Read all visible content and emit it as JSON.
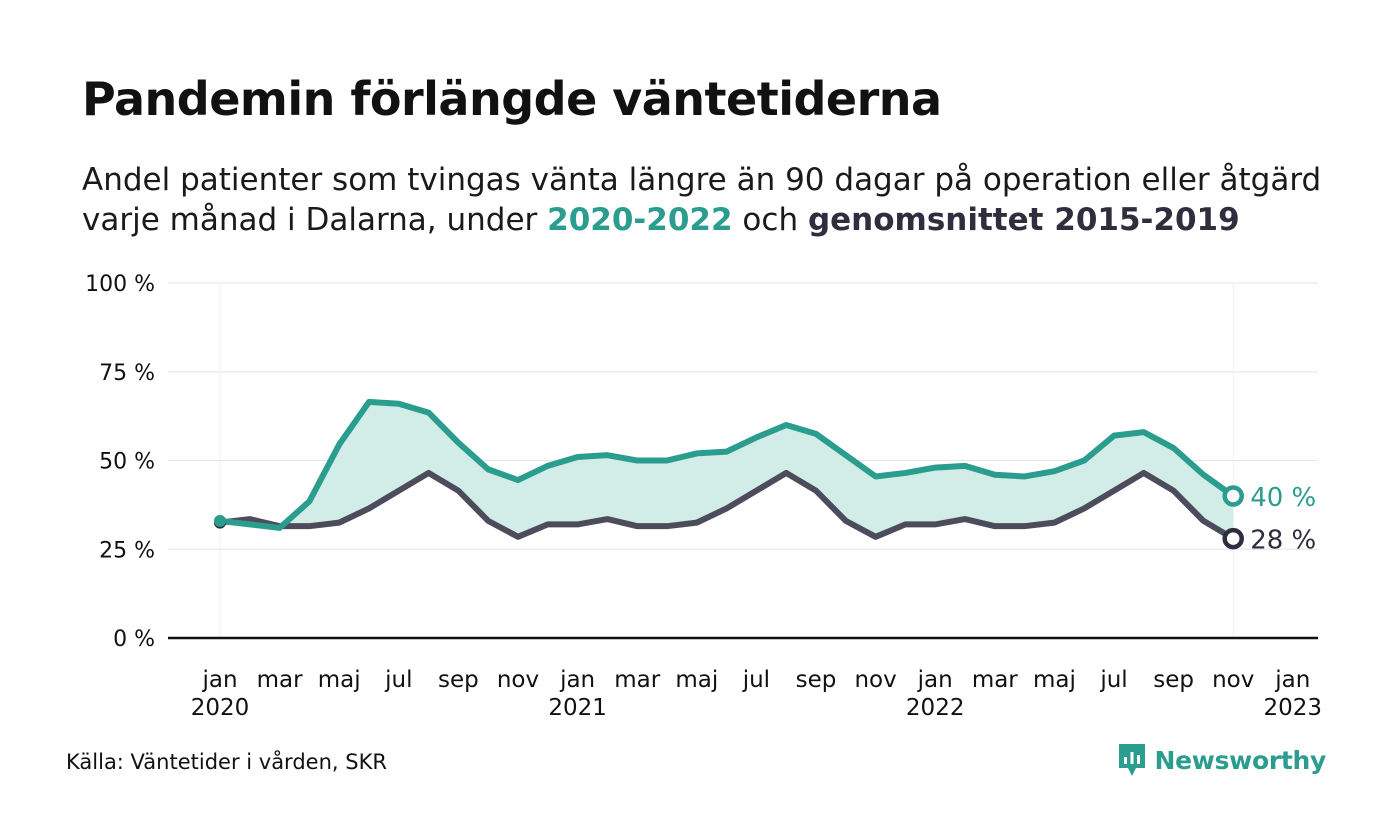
{
  "title": "Pandemin förlängde väntetiderna",
  "subtitle": {
    "line1": "Andel patienter som tvingas vänta längre än 90 dagar på operation eller åtgärd",
    "line2_prefix": "varje månad i Dalarna, under ",
    "line2_current": "2020-2022",
    "line2_mid": " och ",
    "line2_avg": "genomsnittet 2015-2019"
  },
  "source": "Källa: Väntetider i vården, SKR",
  "brand": {
    "name": "Newsworthy",
    "icon": "newsworthy-logo-icon"
  },
  "colors": {
    "current": "#2a9d8f",
    "average": "#4d4c5c",
    "avg_marker": "#2f2e3f",
    "band": "#d2ece8",
    "axis": "#111111",
    "grid": "#e6e6e6"
  },
  "chart_data": {
    "type": "line",
    "x": [
      "2020-01",
      "2020-02",
      "2020-03",
      "2020-04",
      "2020-05",
      "2020-06",
      "2020-07",
      "2020-08",
      "2020-09",
      "2020-10",
      "2020-11",
      "2020-12",
      "2021-01",
      "2021-02",
      "2021-03",
      "2021-04",
      "2021-05",
      "2021-06",
      "2021-07",
      "2021-08",
      "2021-09",
      "2021-10",
      "2021-11",
      "2021-12",
      "2022-01",
      "2022-02",
      "2022-03",
      "2022-04",
      "2022-05",
      "2022-06",
      "2022-07",
      "2022-08",
      "2022-09",
      "2022-10",
      "2022-11"
    ],
    "x_ticks": [
      {
        "label": "jan",
        "year": "2020"
      },
      {
        "label": "mar",
        "year": ""
      },
      {
        "label": "maj",
        "year": ""
      },
      {
        "label": "jul",
        "year": ""
      },
      {
        "label": "sep",
        "year": ""
      },
      {
        "label": "nov",
        "year": ""
      },
      {
        "label": "jan",
        "year": "2021"
      },
      {
        "label": "mar",
        "year": ""
      },
      {
        "label": "maj",
        "year": ""
      },
      {
        "label": "jul",
        "year": ""
      },
      {
        "label": "sep",
        "year": ""
      },
      {
        "label": "nov",
        "year": ""
      },
      {
        "label": "jan",
        "year": "2022"
      },
      {
        "label": "mar",
        "year": ""
      },
      {
        "label": "maj",
        "year": ""
      },
      {
        "label": "jul",
        "year": ""
      },
      {
        "label": "sep",
        "year": ""
      },
      {
        "label": "nov",
        "year": ""
      },
      {
        "label": "jan",
        "year": "2023"
      }
    ],
    "y_ticks": [
      "0 %",
      "25 %",
      "50 %",
      "75 %",
      "100 %"
    ],
    "ylim": [
      0,
      100
    ],
    "grid": true,
    "series": [
      {
        "key": "current",
        "values": [
          33,
          32,
          31,
          38.5,
          54.5,
          66.5,
          66,
          63.5,
          55,
          47.5,
          44.5,
          48.5,
          51,
          51.5,
          50,
          50,
          52,
          52.5,
          56.5,
          60,
          57.5,
          51.5,
          45.5,
          46.5,
          48,
          48.5,
          46,
          45.5,
          47,
          50,
          57,
          58,
          53.5,
          46,
          40
        ],
        "end_label": "40 %"
      },
      {
        "key": "average",
        "values": [
          32.5,
          33.5,
          31.5,
          31.5,
          32.5,
          36.5,
          41.5,
          46.5,
          41.5,
          33,
          28.5,
          32,
          32,
          33.5,
          31.5,
          31.5,
          32.5,
          36.5,
          41.5,
          46.5,
          41.5,
          33,
          28.5,
          32,
          32,
          33.5,
          31.5,
          31.5,
          32.5,
          36.5,
          41.5,
          46.5,
          41.5,
          33,
          28
        ],
        "end_label": "28 %"
      }
    ]
  }
}
